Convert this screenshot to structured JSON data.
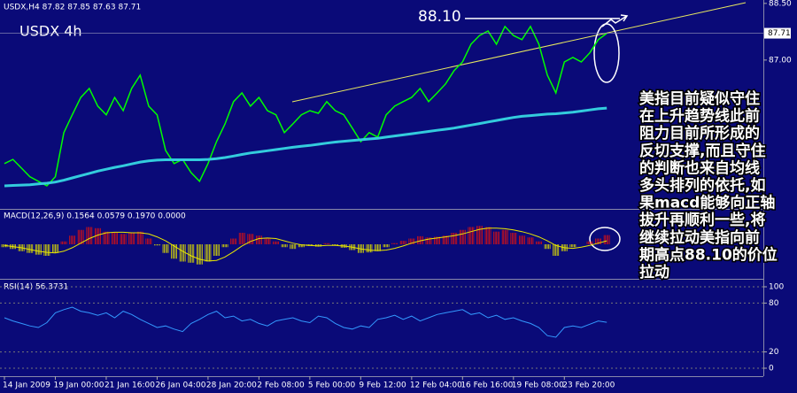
{
  "chart_data": [
    {
      "type": "line",
      "title": "USDX,H4  87.82 87.85 87.63 87.71",
      "subtitle": "USDX  4h",
      "categories": [
        "14 Jan 2009",
        null,
        null,
        null,
        null,
        null,
        "19 Jan 00:00",
        null,
        null,
        null,
        null,
        null,
        "21 Jan 16:00",
        null,
        null,
        null,
        null,
        null,
        "26 Jan 04:00",
        null,
        null,
        null,
        null,
        null,
        "28 Jan 20:00",
        null,
        null,
        null,
        null,
        null,
        "2 Feb 08:00",
        null,
        null,
        null,
        null,
        null,
        "5 Feb 00:00",
        null,
        null,
        null,
        null,
        null,
        "9 Feb 12:00",
        null,
        null,
        null,
        null,
        null,
        "12 Feb 04:00",
        null,
        null,
        null,
        null,
        null,
        "16 Feb 16:00",
        null,
        null,
        null,
        null,
        null,
        "19 Feb 08:00",
        null,
        null,
        null,
        null,
        null,
        "23 Feb 20:00",
        null,
        null,
        null,
        null,
        null
      ],
      "series": [
        {
          "color": "#00ff00",
          "values": [
            84.26,
            84.37,
            84.14,
            83.91,
            83.79,
            83.67,
            83.91,
            85.08,
            85.55,
            86.01,
            86.25,
            85.78,
            85.55,
            86.01,
            85.66,
            86.25,
            86.6,
            85.78,
            85.55,
            84.61,
            84.26,
            84.37,
            84.02,
            83.79,
            84.26,
            84.84,
            85.31,
            85.9,
            86.13,
            85.78,
            86.01,
            85.66,
            85.55,
            85.08,
            85.31,
            85.55,
            85.66,
            85.59,
            85.9,
            85.66,
            85.55,
            85.2,
            84.84,
            85.08,
            84.96,
            85.55,
            85.78,
            85.9,
            86.01,
            86.25,
            85.9,
            86.13,
            86.37,
            86.72,
            86.95,
            87.42,
            87.65,
            87.77,
            87.42,
            87.89,
            87.65,
            87.54,
            87.89,
            87.42,
            86.6,
            86.13,
            86.95,
            87.07,
            86.95,
            87.19,
            87.54,
            87.71
          ]
        },
        {
          "color": "#33ccdd",
          "values": [
            83.67,
            83.68,
            83.69,
            83.7,
            83.72,
            83.74,
            83.77,
            83.82,
            83.88,
            83.94,
            84.0,
            84.06,
            84.11,
            84.16,
            84.2,
            84.25,
            84.3,
            84.33,
            84.35,
            84.36,
            84.36,
            84.36,
            84.36,
            84.36,
            84.37,
            84.39,
            84.42,
            84.46,
            84.5,
            84.54,
            84.57,
            84.6,
            84.63,
            84.66,
            84.69,
            84.72,
            84.74,
            84.77,
            84.8,
            84.83,
            84.85,
            84.87,
            84.89,
            84.91,
            84.93,
            84.96,
            84.99,
            85.02,
            85.05,
            85.08,
            85.11,
            85.14,
            85.17,
            85.2,
            85.24,
            85.28,
            85.32,
            85.36,
            85.4,
            85.44,
            85.48,
            85.51,
            85.53,
            85.55,
            85.57,
            85.58,
            85.6,
            85.62,
            85.65,
            85.68,
            85.71,
            85.73
          ]
        }
      ],
      "ylim": [
        83.06,
        88.59
      ],
      "yticks": [
        {
          "value": 88.5,
          "label": "88.50"
        },
        {
          "value": 87,
          "label": "87.00"
        }
      ],
      "current_price": {
        "value": 87.71,
        "label": "87.71"
      },
      "hline": {
        "value": 88.1,
        "label": "88.10"
      },
      "annotation": [
        "美指目前疑似守住",
        "在上升趋势线此前",
        "阻力目前所形成的",
        "反切支撑,而且守住",
        "的判断也来自均线",
        "多头排列的依托,如",
        "果macd能够向正轴",
        "拔升再顺利一些,将",
        "继续拉动美指向前",
        "期高点88.10的价位",
        "拉动"
      ]
    },
    {
      "type": "bar",
      "title": "MACD(12,26,9) 0.1564 0.0579 0.1970 0.0000",
      "values": [
        -0.05,
        -0.08,
        -0.12,
        -0.15,
        -0.18,
        -0.2,
        -0.15,
        0.05,
        0.15,
        0.25,
        0.3,
        0.28,
        0.22,
        0.2,
        0.18,
        0.2,
        0.22,
        0.1,
        -0.02,
        -0.15,
        -0.25,
        -0.3,
        -0.32,
        -0.35,
        -0.3,
        -0.2,
        -0.05,
        0.1,
        0.2,
        0.18,
        0.15,
        0.1,
        0.05,
        -0.05,
        -0.08,
        -0.05,
        -0.03,
        -0.04,
        0.02,
        -0.02,
        -0.06,
        -0.1,
        -0.15,
        -0.14,
        -0.12,
        -0.05,
        0.02,
        0.06,
        0.1,
        0.14,
        0.12,
        0.13,
        0.15,
        0.2,
        0.25,
        0.3,
        0.32,
        0.3,
        0.22,
        0.25,
        0.2,
        0.15,
        0.12,
        0.05,
        -0.08,
        -0.2,
        -0.12,
        -0.05,
        0.0,
        0.05,
        0.1,
        0.16
      ],
      "colors": {
        "up": "#dd1111",
        "down": "#dddd00"
      },
      "series": [
        {
          "color": "#e8e800",
          "values": [
            -0.02,
            -0.04,
            -0.06,
            -0.09,
            -0.12,
            -0.14,
            -0.15,
            -0.12,
            -0.06,
            0.02,
            0.1,
            0.16,
            0.2,
            0.21,
            0.21,
            0.2,
            0.2,
            0.18,
            0.13,
            0.06,
            -0.03,
            -0.12,
            -0.2,
            -0.26,
            -0.29,
            -0.28,
            -0.22,
            -0.13,
            -0.03,
            0.05,
            0.1,
            0.11,
            0.1,
            0.06,
            0.02,
            -0.01,
            -0.02,
            -0.03,
            -0.02,
            -0.02,
            -0.03,
            -0.05,
            -0.08,
            -0.1,
            -0.11,
            -0.1,
            -0.07,
            -0.03,
            0.02,
            0.06,
            0.09,
            0.11,
            0.13,
            0.15,
            0.18,
            0.22,
            0.26,
            0.28,
            0.28,
            0.27,
            0.25,
            0.22,
            0.18,
            0.13,
            0.06,
            -0.02,
            -0.06,
            -0.07,
            -0.05,
            -0.02,
            0.02,
            0.06
          ]
        }
      ],
      "ylim": [
        -0.6,
        0.6
      ]
    },
    {
      "type": "line",
      "title": "RSI(14) 56.3731",
      "series": [
        {
          "color": "#3399ff",
          "values": [
            62,
            58,
            55,
            52,
            50,
            56,
            68,
            72,
            75,
            70,
            68,
            65,
            68,
            62,
            70,
            66,
            60,
            55,
            50,
            52,
            48,
            45,
            55,
            60,
            66,
            70,
            62,
            64,
            58,
            60,
            55,
            52,
            58,
            60,
            62,
            58,
            56,
            64,
            62,
            55,
            50,
            48,
            52,
            50,
            60,
            62,
            65,
            60,
            64,
            58,
            62,
            66,
            68,
            70,
            72,
            66,
            68,
            62,
            65,
            60,
            62,
            58,
            55,
            50,
            40,
            38,
            50,
            52,
            50,
            54,
            58,
            56.3731
          ]
        }
      ],
      "ylim": [
        0,
        100
      ],
      "yticks": [
        0,
        20,
        80,
        100
      ]
    }
  ]
}
